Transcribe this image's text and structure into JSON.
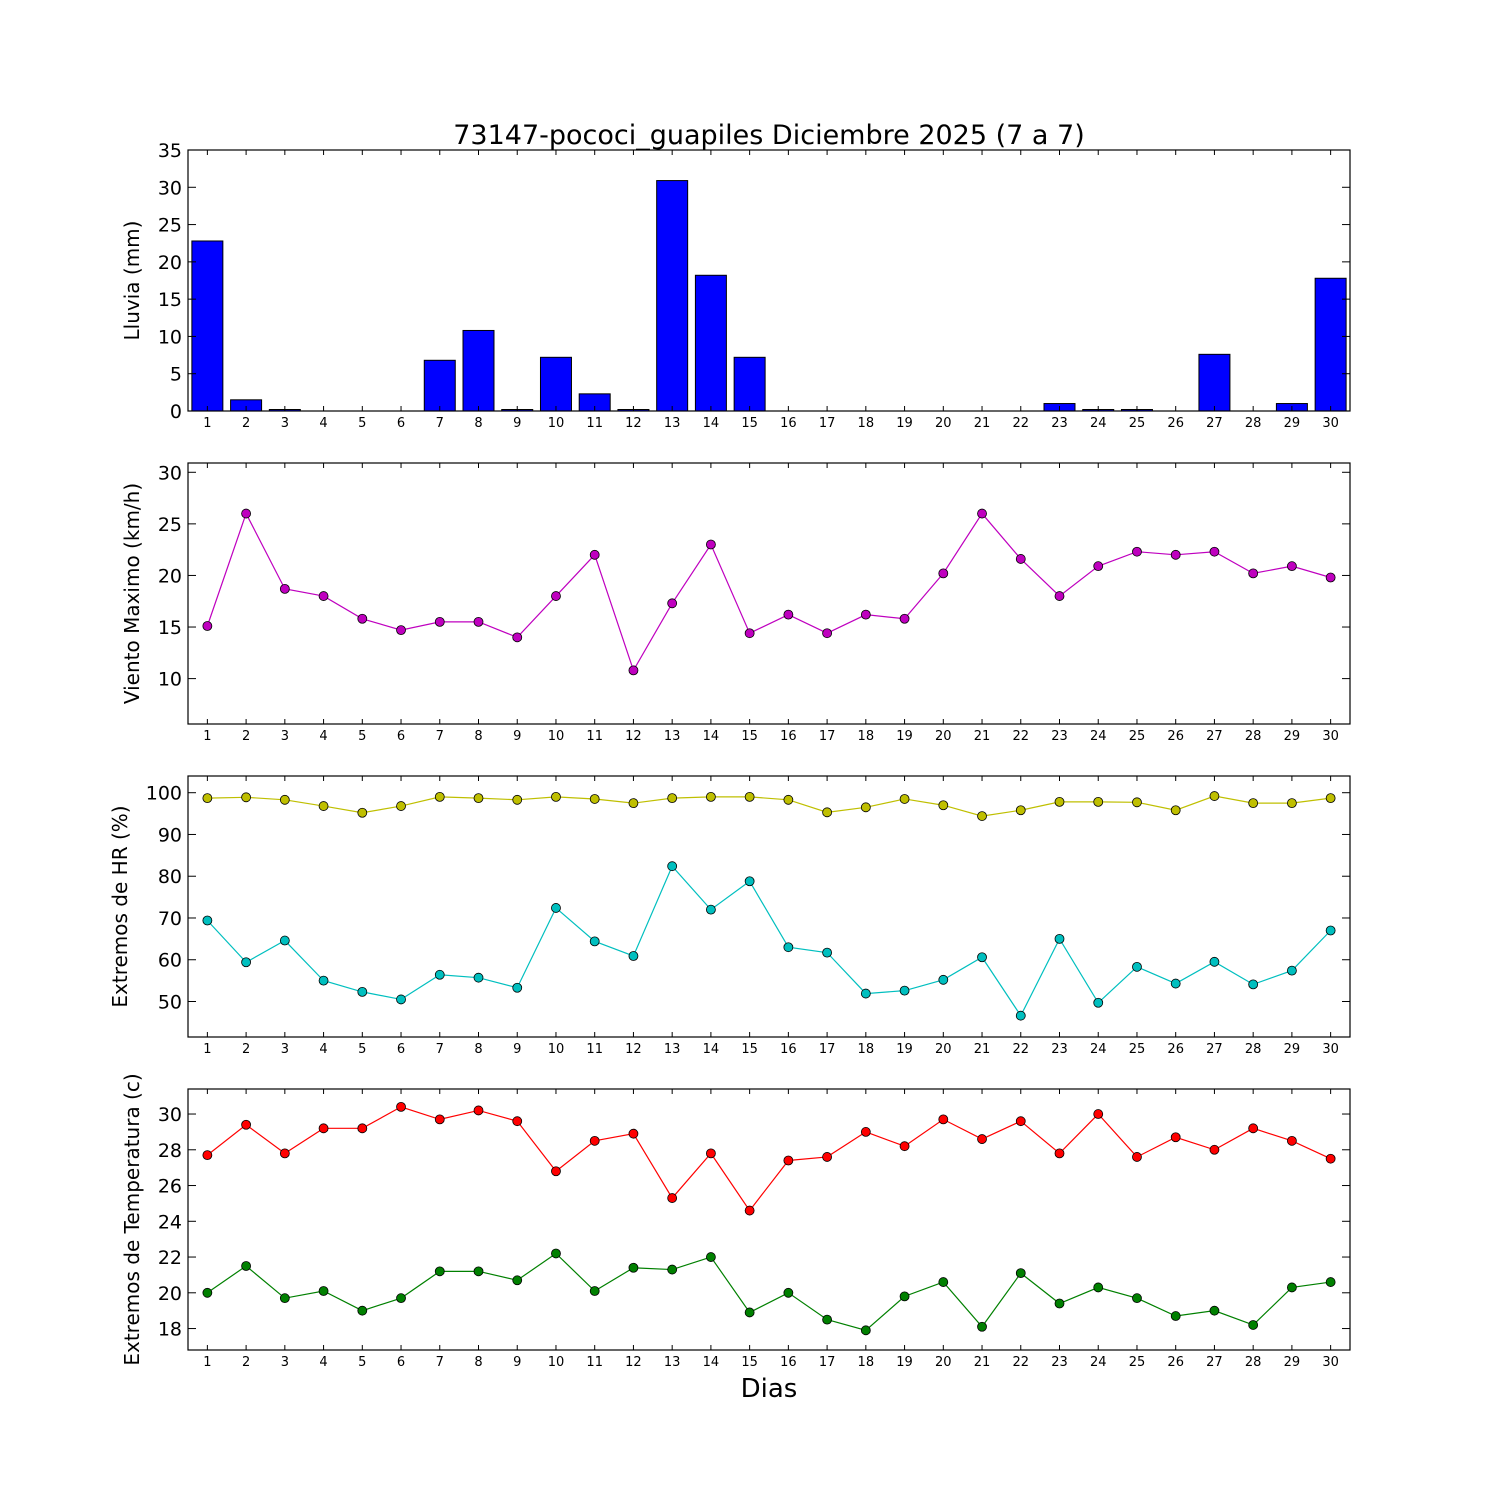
{
  "figure_title": "73147-pococi_guapiles Diciembre 2025  (7 a 7)",
  "xlabel": "Dias",
  "chart_data": [
    {
      "type": "bar",
      "ylabel": "Lluvia (mm)",
      "ylim": [
        0,
        35
      ],
      "yticks": [
        0,
        5,
        10,
        15,
        20,
        25,
        30,
        35
      ],
      "x": [
        1,
        2,
        3,
        4,
        5,
        6,
        7,
        8,
        9,
        10,
        11,
        12,
        13,
        14,
        15,
        16,
        17,
        18,
        19,
        20,
        21,
        22,
        23,
        24,
        25,
        26,
        27,
        28,
        29,
        30
      ],
      "series": [
        {
          "color": "#0000ff",
          "values": [
            22.8,
            1.5,
            0.2,
            0,
            0,
            0,
            6.8,
            10.8,
            0.2,
            7.2,
            2.3,
            0.2,
            30.9,
            18.2,
            7.2,
            0,
            0,
            0,
            0,
            0,
            0,
            0,
            1.0,
            0.2,
            0.2,
            0,
            7.6,
            0,
            1.0,
            17.8
          ]
        }
      ]
    },
    {
      "type": "line",
      "ylabel": "Viento Maximo (km/h)",
      "ylim": [
        5.6,
        30.9
      ],
      "yticks": [
        10,
        15,
        20,
        25,
        30
      ],
      "x": [
        1,
        2,
        3,
        4,
        5,
        6,
        7,
        8,
        9,
        10,
        11,
        12,
        13,
        14,
        15,
        16,
        17,
        18,
        19,
        20,
        21,
        22,
        23,
        24,
        25,
        26,
        27,
        28,
        29,
        30
      ],
      "series": [
        {
          "color": "#bf00bf",
          "values": [
            15.1,
            26.0,
            18.7,
            18.0,
            15.8,
            14.7,
            15.5,
            15.5,
            14.0,
            18.0,
            22.0,
            10.8,
            17.3,
            23.0,
            14.4,
            16.2,
            14.4,
            16.2,
            15.8,
            20.2,
            26.0,
            21.6,
            18.0,
            20.9,
            22.3,
            22.0,
            22.3,
            20.2,
            20.9,
            19.8
          ]
        }
      ]
    },
    {
      "type": "line",
      "ylabel": "Extremos de HR (%)",
      "ylim": [
        41.5,
        104
      ],
      "yticks": [
        50,
        60,
        70,
        80,
        90,
        100
      ],
      "x": [
        1,
        2,
        3,
        4,
        5,
        6,
        7,
        8,
        9,
        10,
        11,
        12,
        13,
        14,
        15,
        16,
        17,
        18,
        19,
        20,
        21,
        22,
        23,
        24,
        25,
        26,
        27,
        28,
        29,
        30
      ],
      "series": [
        {
          "color": "#bfbf00",
          "values": [
            98.7,
            98.9,
            98.3,
            96.8,
            95.2,
            96.8,
            99.0,
            98.7,
            98.3,
            99.0,
            98.5,
            97.5,
            98.7,
            99.0,
            99.0,
            98.3,
            95.3,
            96.5,
            98.5,
            97.0,
            94.4,
            95.8,
            97.8,
            97.8,
            97.7,
            95.8,
            99.2,
            97.5,
            97.5,
            98.7
          ]
        },
        {
          "color": "#00bfbf",
          "values": [
            69.4,
            59.4,
            64.6,
            55.0,
            52.3,
            50.5,
            56.4,
            55.7,
            53.3,
            72.4,
            64.4,
            60.9,
            82.4,
            72.0,
            78.8,
            63.0,
            61.7,
            51.9,
            52.6,
            55.2,
            60.6,
            46.6,
            65.0,
            49.7,
            58.3,
            54.3,
            59.5,
            54.1,
            57.4,
            67.0
          ]
        }
      ]
    },
    {
      "type": "line",
      "ylabel": "Extremos de Temperatura (c)",
      "ylim": [
        16.8,
        31.4
      ],
      "yticks": [
        18,
        20,
        22,
        24,
        26,
        28,
        30
      ],
      "x": [
        1,
        2,
        3,
        4,
        5,
        6,
        7,
        8,
        9,
        10,
        11,
        12,
        13,
        14,
        15,
        16,
        17,
        18,
        19,
        20,
        21,
        22,
        23,
        24,
        25,
        26,
        27,
        28,
        29,
        30
      ],
      "series": [
        {
          "color": "#ff0000",
          "values": [
            27.7,
            29.4,
            27.8,
            29.2,
            29.2,
            30.4,
            29.7,
            30.2,
            29.6,
            26.8,
            28.5,
            28.9,
            25.3,
            27.8,
            24.6,
            27.4,
            27.6,
            29.0,
            28.2,
            29.7,
            28.6,
            29.6,
            27.8,
            30.0,
            27.6,
            28.7,
            28.0,
            29.2,
            28.5,
            27.5
          ]
        },
        {
          "color": "#008000",
          "values": [
            20.0,
            21.5,
            19.7,
            20.1,
            19.0,
            19.7,
            21.2,
            21.2,
            20.7,
            22.2,
            20.1,
            21.4,
            21.3,
            22.0,
            18.9,
            20.0,
            18.5,
            17.9,
            19.8,
            20.6,
            18.1,
            21.1,
            19.4,
            20.3,
            19.7,
            18.7,
            19.0,
            18.2,
            20.3,
            20.6
          ]
        }
      ]
    }
  ]
}
